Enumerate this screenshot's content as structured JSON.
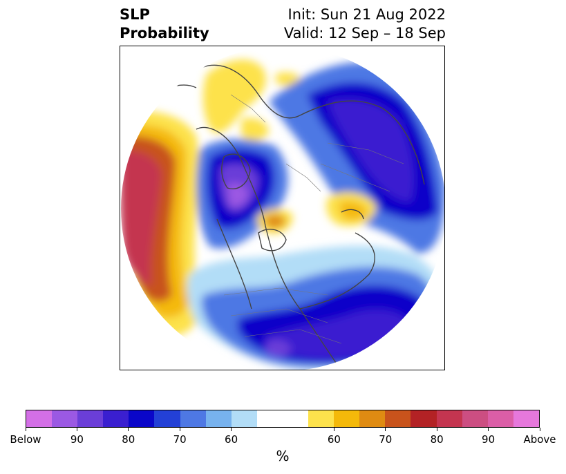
{
  "title": {
    "left_line1": "SLP",
    "left_line2": "Probability",
    "right_line1": "Init: Sun 21 Aug 2022",
    "right_line2": "Valid: 12 Sep – 18 Sep"
  },
  "colors": {
    "below_90_plus": "#d36fe6",
    "below_90": "#9b59e3",
    "below_85": "#6b3ed8",
    "below_80": "#3a1fd0",
    "below_75": "#0a06c9",
    "below_70": "#2340d6",
    "below_65": "#4e78e4",
    "below_60": "#77b2ee",
    "below_55": "#b2ddf7",
    "neutral": "#ffffff",
    "above_55": "#fde24c",
    "above_60": "#f4b90a",
    "above_65": "#df8b12",
    "above_70": "#c8531c",
    "above_75": "#b32225",
    "above_80": "#c43550",
    "above_85": "#cc4e82",
    "above_90": "#db5ea7",
    "above_90_plus": "#e678dc"
  },
  "colorbar": {
    "cells": [
      "#d36fe6",
      "#9b59e3",
      "#6b3ed8",
      "#3a1fd0",
      "#0a06c9",
      "#2340d6",
      "#4e78e4",
      "#77b2ee",
      "#b2ddf7",
      "#ffffff",
      "#ffffff",
      "#fde24c",
      "#f4b90a",
      "#df8b12",
      "#c8531c",
      "#b32225",
      "#c43550",
      "#cc4e82",
      "#db5ea7",
      "#e678dc"
    ],
    "tick_labels": [
      "Below",
      "90",
      "80",
      "70",
      "60",
      "60",
      "70",
      "80",
      "90",
      "Above"
    ],
    "unit_label": "%"
  }
}
